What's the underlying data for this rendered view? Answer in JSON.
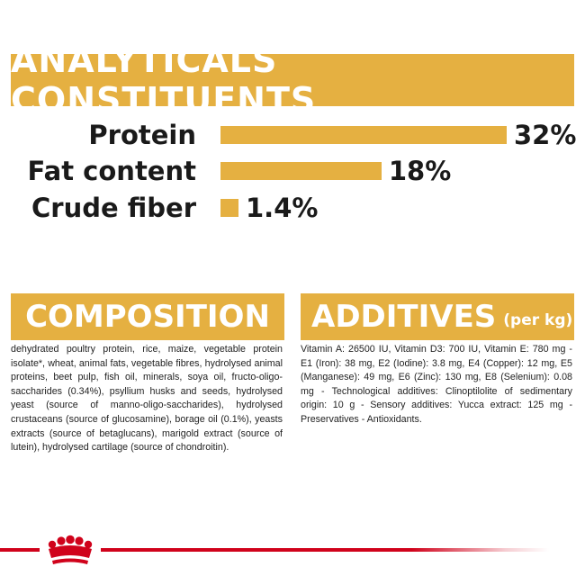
{
  "analytics": {
    "title": "ANALYTICALS CONSTITUENTS",
    "rows": [
      {
        "label": "Protein",
        "value": "32%",
        "percent": 32
      },
      {
        "label": "Fat content",
        "value": "18%",
        "percent": 18
      },
      {
        "label": "Crude fiber",
        "value": "1.4%",
        "percent": 1.4
      }
    ]
  },
  "composition": {
    "title": "COMPOSITION",
    "text": "dehydrated poultry protein, rice, maize, vegetable protein isolate*, wheat, animal fats, vegetable fibres, hydrolysed animal proteins, beet pulp, fish oil, minerals, soya oil, fructo-oligo-saccharides (0.34%), psyllium husks and seeds, hydrolysed yeast (source of manno-oligo-saccharides), hydrolysed crustaceans (source of glucosamine), borage oil (0.1%), yeasts extracts (source of betaglucans), marigold extract (source of lutein), hydrolysed cartilage (source of chondroitin)."
  },
  "additives": {
    "title": "ADDITIVES",
    "subtitle": "(per kg)",
    "text": "Vitamin A: 26500 IU, Vitamin D3: 700 IU, Vitamin E: 780 mg - E1 (Iron): 38 mg, E2 (Iodine): 3.8 mg, E4 (Copper): 12 mg, E5 (Manganese): 49 mg, E6 (Zinc): 130 mg, E8 (Selenium): 0.08 mg - Technological additives: Clinoptilolite of sedimentary origin: 10 g - Sensory additives: Yucca extract: 125 mg - Preservatives - Antioxidants."
  },
  "colors": {
    "accent": "#e5b041",
    "brand_red": "#d0021b"
  },
  "footer": {
    "logo_icon": "royal-crown-icon"
  }
}
